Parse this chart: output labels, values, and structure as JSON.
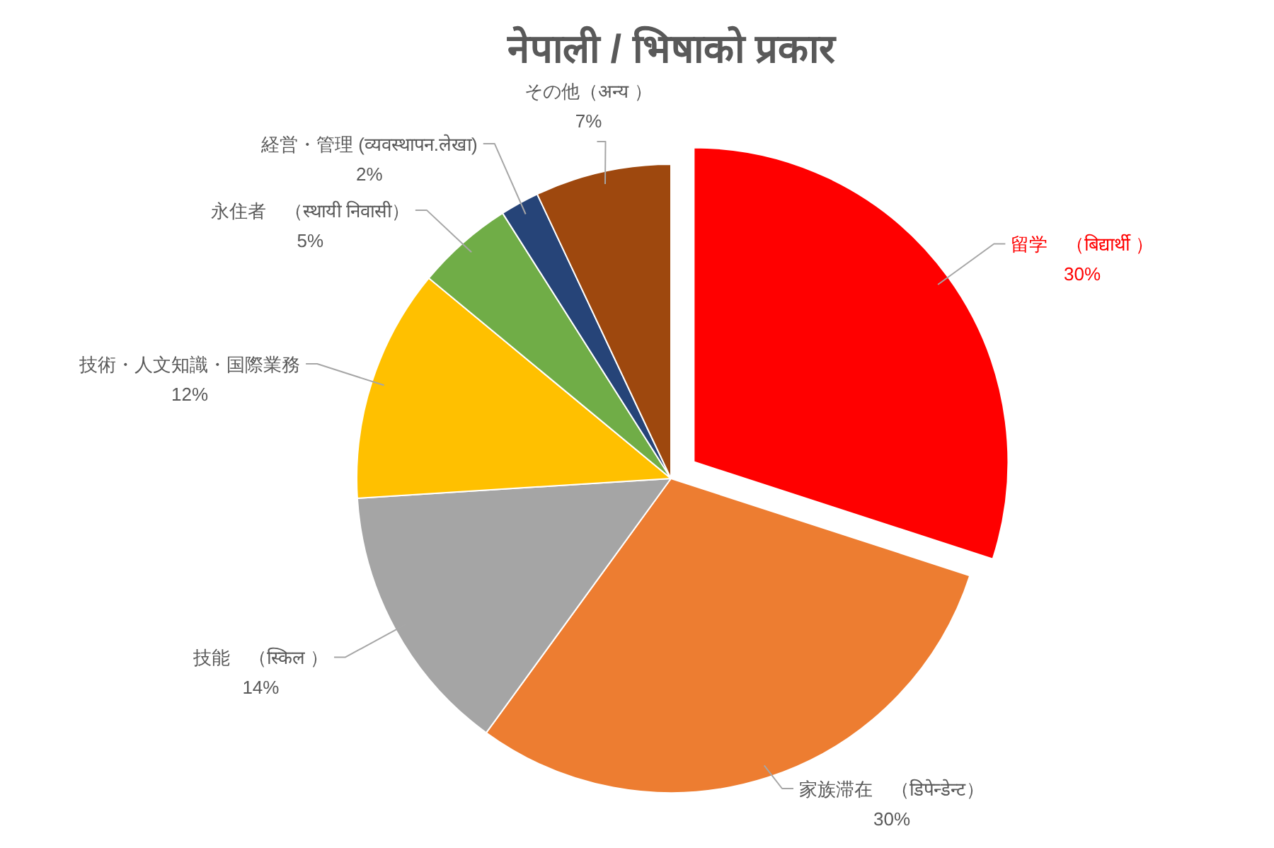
{
  "chart_data": {
    "type": "pie",
    "title": "नेपाली / भिषाको प्रकार",
    "categories": [
      "留学　（बिद्यार्थी ）",
      "家族滞在　（डिपेन्डेन्ट）",
      "技能　（स्किल ）",
      "技術・人文知識・国際業務",
      "永住者　（स्थायी निवासी）",
      "経営・管理 (व्यवस्थापन.लेखा)",
      "その他（अन्य ）"
    ],
    "values": [
      30,
      30,
      14,
      12,
      5,
      2,
      7
    ],
    "colors": [
      "#ff0000",
      "#ed7d31",
      "#a5a5a5",
      "#ffc000",
      "#70ad47",
      "#264478",
      "#9e480e"
    ],
    "value_labels": [
      "30%",
      "30%",
      "14%",
      "12%",
      "5%",
      "2%",
      "7%"
    ]
  }
}
